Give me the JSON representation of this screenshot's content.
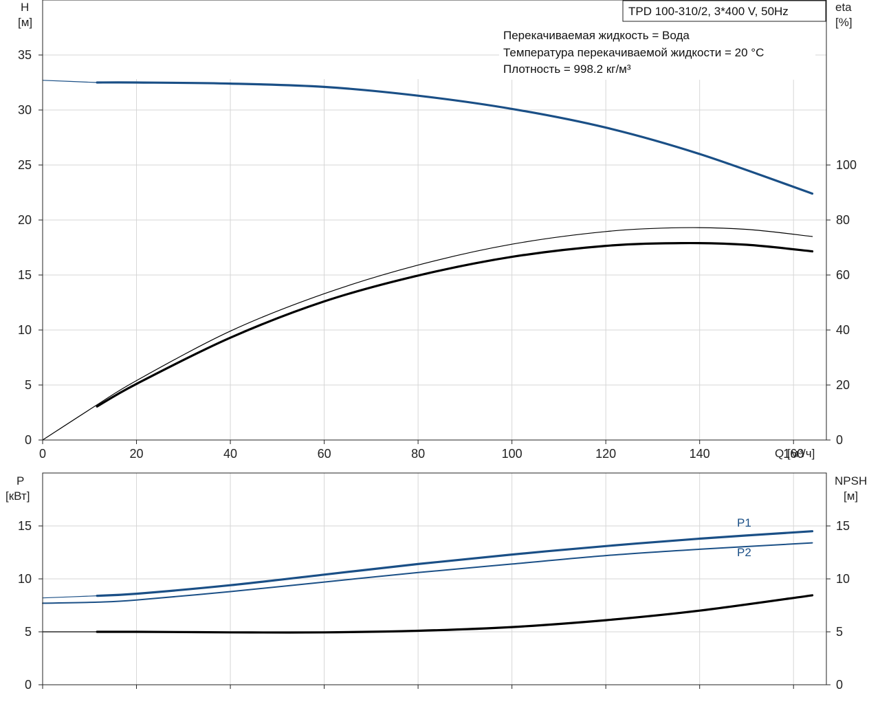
{
  "top_chart": {
    "y_left_label": "H",
    "y_left_unit": "[м]",
    "y_right_label": "eta",
    "y_right_unit": "[%]",
    "x_label": "Q [м³/ч]",
    "title_box": "TPD 100-310/2, 3*400 V, 50Hz",
    "info_lines": [
      "Перекачиваемая жидкость = Вода",
      "Температура перекачиваемой жидкости = 20 °C",
      "Плотность = 998.2 кг/м³"
    ]
  },
  "bottom_chart": {
    "y_left_label": "P",
    "y_left_unit": "[кВт]",
    "y_right_label": "NPSH",
    "y_right_unit": "[м]",
    "series_labels": {
      "p1": "P1",
      "p2": "P2"
    }
  },
  "colors": {
    "blue": "#1a4f86",
    "black": "#000000"
  },
  "chart_data": [
    {
      "type": "line",
      "xlim": [
        0,
        167
      ],
      "x_ticks": [
        0,
        20,
        40,
        60,
        80,
        100,
        120,
        140,
        160
      ],
      "y_left_lim": [
        0,
        40
      ],
      "y_left_ticks": [
        0,
        5,
        10,
        15,
        20,
        25,
        30,
        35
      ],
      "y_right_lim": [
        0,
        160
      ],
      "y_right_ticks": [
        0,
        20,
        40,
        60,
        80,
        100
      ],
      "grid": true,
      "series": [
        {
          "axis": "left",
          "color": "#1a4f86",
          "style": "thick",
          "x": [
            11.6,
            20,
            40,
            60,
            80,
            100,
            120,
            140,
            164
          ],
          "y": [
            32.5,
            32.5,
            32.4,
            32.1,
            31.3,
            30.1,
            28.4,
            26.0,
            22.4
          ]
        },
        {
          "axis": "left",
          "color": "#1a4f86",
          "style": "thin",
          "x": [
            0,
            11.6
          ],
          "y": [
            32.7,
            32.5
          ]
        },
        {
          "axis": "right",
          "color": "#000000",
          "style": "thin",
          "x": [
            0,
            11.6,
            20,
            40,
            60,
            80,
            100,
            120,
            136,
            150,
            164
          ],
          "y": [
            0,
            12.8,
            21.6,
            39.6,
            53.2,
            63.6,
            71.2,
            75.8,
            77.2,
            76.6,
            74.0
          ]
        },
        {
          "axis": "right",
          "color": "#000000",
          "style": "thick",
          "x": [
            11.6,
            20,
            40,
            60,
            80,
            100,
            120,
            136,
            150,
            164
          ],
          "y": [
            12.2,
            20.4,
            37.2,
            50.4,
            59.8,
            66.6,
            70.6,
            71.6,
            71.0,
            68.6
          ]
        }
      ]
    },
    {
      "type": "line",
      "xlim": [
        0,
        167
      ],
      "x_ticks": [
        0,
        20,
        40,
        60,
        80,
        100,
        120,
        140,
        160
      ],
      "y_left_lim": [
        0,
        20
      ],
      "y_left_ticks": [
        0,
        5,
        10,
        15
      ],
      "y_right_lim": [
        0,
        20
      ],
      "y_right_ticks": [
        0,
        5,
        10,
        15
      ],
      "grid": true,
      "series": [
        {
          "name": "P1",
          "axis": "left",
          "color": "#1a4f86",
          "style": "thick",
          "x": [
            11.6,
            20,
            40,
            60,
            80,
            100,
            120,
            140,
            164
          ],
          "y": [
            8.4,
            8.6,
            9.4,
            10.4,
            11.4,
            12.3,
            13.1,
            13.8,
            14.5
          ]
        },
        {
          "axis": "left",
          "color": "#1a4f86",
          "style": "thin",
          "x": [
            0,
            11.6
          ],
          "y": [
            8.2,
            8.4
          ]
        },
        {
          "name": "P2",
          "axis": "left",
          "color": "#1a4f86",
          "style": "medium",
          "x": [
            0,
            11.6,
            20,
            40,
            60,
            80,
            100,
            120,
            140,
            164
          ],
          "y": [
            7.7,
            7.8,
            8.0,
            8.8,
            9.7,
            10.6,
            11.4,
            12.2,
            12.8,
            13.4
          ]
        },
        {
          "axis": "right",
          "color": "#000000",
          "style": "thick",
          "x": [
            11.6,
            20,
            40,
            60,
            80,
            100,
            120,
            140,
            164
          ],
          "y": [
            5.0,
            5.0,
            4.95,
            4.95,
            5.1,
            5.45,
            6.1,
            7.0,
            8.45
          ]
        },
        {
          "axis": "right",
          "color": "#000000",
          "style": "thin",
          "x": [
            0,
            11.6
          ],
          "y": [
            5.0,
            5.0
          ]
        }
      ]
    }
  ]
}
